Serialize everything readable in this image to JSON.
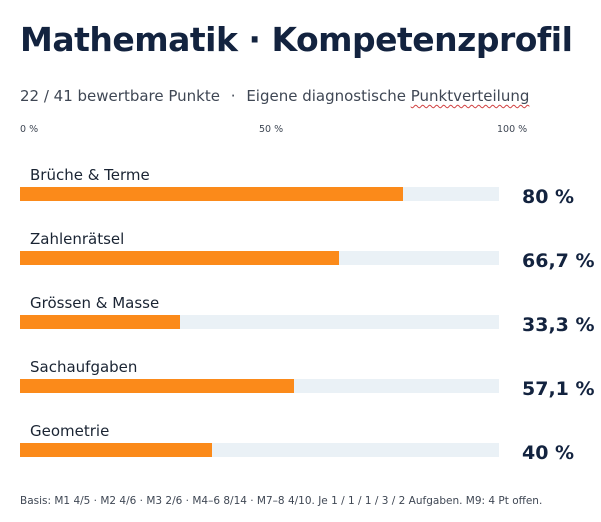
{
  "title": "Mathematik · Kompetenzprofil",
  "subtitle": {
    "count": "22 / 41 bewertbare Punkte",
    "separator": "·",
    "method_prefix": "Eigene diagnostische ",
    "method_word": "Punktverteilung"
  },
  "chart_data": {
    "type": "bar",
    "orientation": "horizontal",
    "x_ticks": [
      "0 %",
      "50 %",
      "100 %"
    ],
    "xlim": [
      0,
      100
    ],
    "categories": [
      "Brüche & Terme",
      "Zahlenrätsel",
      "Grössen & Masse",
      "Sachaufgaben",
      "Geometrie"
    ],
    "values": [
      80,
      66.7,
      33.3,
      57.1,
      40
    ],
    "value_labels": [
      "80 %",
      "66,7 %",
      "33,3 %",
      "57,1 %",
      "40 %"
    ],
    "bar_color": "#fb8a1a",
    "track_color": "#eaf1f6"
  },
  "footnote": "Basis: M1 4/5 · M2 4/6 · M3 2/6 · M4–6 8/14 · M7–8 4/10. Je 1 / 1 / 1 / 3 / 2 Aufgaben. M9: 4 Pt offen."
}
